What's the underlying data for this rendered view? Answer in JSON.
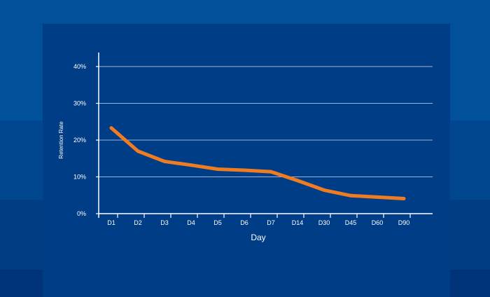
{
  "chart_data": {
    "type": "line",
    "title": "",
    "xlabel": "Day",
    "ylabel": "Retention Rate",
    "categories": [
      "D1",
      "D2",
      "D3",
      "D4",
      "D5",
      "D6",
      "D7",
      "D14",
      "D30",
      "D45",
      "D60",
      "D90"
    ],
    "series": [
      {
        "values": [
          23.3,
          17.0,
          14.2,
          13.2,
          12.1,
          11.8,
          11.4,
          9.0,
          6.4,
          4.9,
          4.5,
          4.1
        ]
      }
    ],
    "ylim": [
      0,
      40
    ],
    "yticks": [
      0,
      10,
      20,
      30,
      40
    ],
    "yticklabels": [
      "0%",
      "10%",
      "20%",
      "30%",
      "40%"
    ],
    "grid": true,
    "legend": "none",
    "colors": {
      "line": "#f07c22",
      "grid": "#9fb4d6",
      "axis": "#ffffff",
      "text": "#ffffff",
      "panel": "#003d87"
    }
  }
}
